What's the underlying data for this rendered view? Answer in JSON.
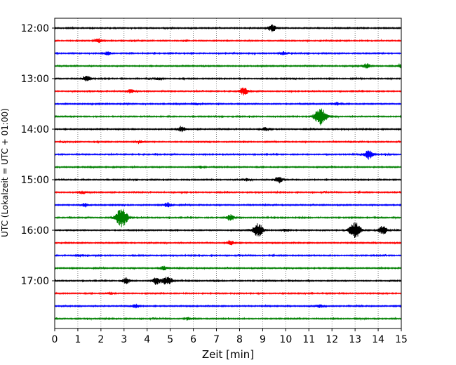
{
  "chart_data": {
    "type": "line",
    "title": "",
    "xlabel": "Zeit  [min]",
    "ylabel": "UTC (Lokalzeit = UTC + 01:00)",
    "xlim": [
      0,
      15
    ],
    "x_ticks": [
      "0",
      "1",
      "2",
      "3",
      "4",
      "5",
      "6",
      "7",
      "8",
      "9",
      "10",
      "11",
      "12",
      "13",
      "14",
      "15"
    ],
    "y_ticks": [
      "12:00",
      "13:00",
      "14:00",
      "15:00",
      "16:00",
      "17:00"
    ],
    "vertical_grid": true,
    "trace_colors": [
      "#000000",
      "#ff0000",
      "#0000ff",
      "#008000"
    ],
    "rows": [
      {
        "start": "12:00",
        "events": [
          [
            9.4,
            0.9
          ]
        ]
      },
      {
        "start": "12:15",
        "events": [
          [
            1.9,
            0.6
          ]
        ]
      },
      {
        "start": "12:30",
        "events": [
          [
            2.3,
            0.4
          ],
          [
            9.9,
            0.4
          ]
        ]
      },
      {
        "start": "12:45",
        "events": [
          [
            13.5,
            0.6
          ],
          [
            15.0,
            0.4
          ]
        ]
      },
      {
        "start": "13:00",
        "events": [
          [
            1.4,
            0.7
          ],
          [
            4.5,
            0.3
          ]
        ]
      },
      {
        "start": "13:15",
        "events": [
          [
            3.3,
            0.5
          ],
          [
            8.2,
            0.9
          ]
        ]
      },
      {
        "start": "13:30",
        "events": [
          [
            6.1,
            0.3
          ],
          [
            12.2,
            0.4
          ]
        ]
      },
      {
        "start": "13:45",
        "events": [
          [
            11.5,
            2.2
          ]
        ]
      },
      {
        "start": "14:00",
        "events": [
          [
            5.5,
            0.6
          ],
          [
            9.1,
            0.4
          ]
        ]
      },
      {
        "start": "14:15",
        "events": [
          [
            3.7,
            0.3
          ]
        ]
      },
      {
        "start": "14:30",
        "events": [
          [
            13.6,
            1.0
          ]
        ]
      },
      {
        "start": "14:45",
        "events": [
          [
            6.3,
            0.3
          ]
        ]
      },
      {
        "start": "15:00",
        "events": [
          [
            9.7,
            0.8
          ],
          [
            8.3,
            0.3
          ]
        ]
      },
      {
        "start": "15:15",
        "events": [
          [
            1.2,
            0.4
          ]
        ]
      },
      {
        "start": "15:30",
        "events": [
          [
            1.3,
            0.5
          ],
          [
            4.9,
            0.6
          ]
        ]
      },
      {
        "start": "15:45",
        "events": [
          [
            2.9,
            2.2
          ],
          [
            7.6,
            0.8
          ]
        ]
      },
      {
        "start": "16:00",
        "events": [
          [
            8.8,
            1.6
          ],
          [
            13.0,
            2.0
          ],
          [
            14.2,
            1.0
          ],
          [
            10.0,
            0.4
          ]
        ]
      },
      {
        "start": "16:15",
        "events": [
          [
            7.6,
            0.6
          ]
        ]
      },
      {
        "start": "16:30",
        "events": [
          [
            1.1,
            0.3
          ]
        ]
      },
      {
        "start": "16:45",
        "events": [
          [
            4.7,
            0.5
          ]
        ]
      },
      {
        "start": "17:00",
        "events": [
          [
            3.1,
            0.7
          ],
          [
            4.4,
            0.8
          ],
          [
            4.8,
            0.8
          ],
          [
            5.0,
            0.5
          ]
        ]
      },
      {
        "start": "17:15",
        "events": [
          [
            2.4,
            0.3
          ]
        ]
      },
      {
        "start": "17:30",
        "events": [
          [
            3.5,
            0.5
          ],
          [
            11.5,
            0.4
          ]
        ]
      },
      {
        "start": "17:45",
        "events": [
          [
            5.8,
            0.3
          ]
        ]
      }
    ]
  }
}
